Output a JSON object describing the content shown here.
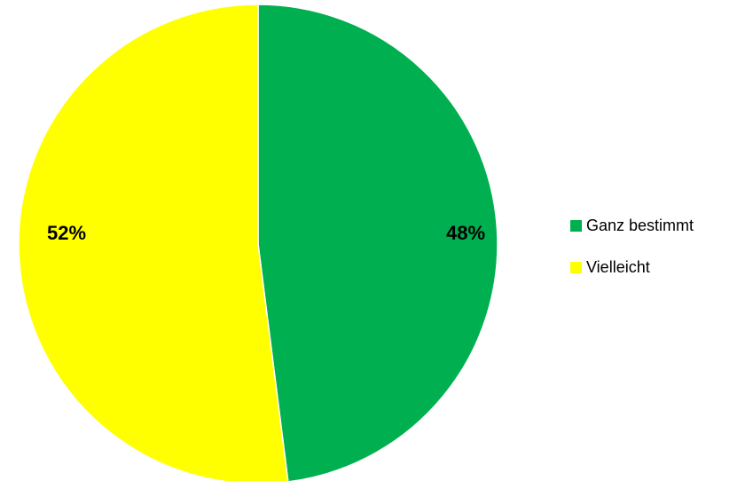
{
  "chart_data": {
    "type": "pie",
    "title": "",
    "slices": [
      {
        "label": "Ganz bestimmt",
        "value": 48,
        "display": "48%",
        "color": "#00b050"
      },
      {
        "label": "Vielleicht",
        "value": 52,
        "display": "52%",
        "color": "#ffff00"
      }
    ],
    "start_angle_deg": 0,
    "direction": "clockwise",
    "legend_position": "right"
  }
}
